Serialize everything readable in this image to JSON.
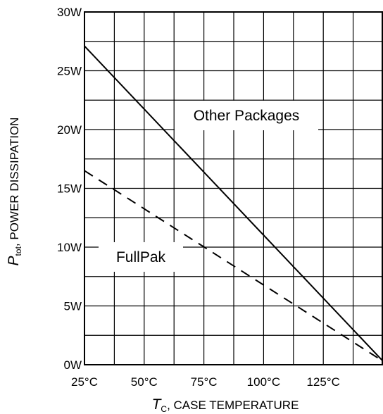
{
  "chart_data": {
    "type": "line",
    "xlabel": {
      "symbol": "T",
      "subscript": "C",
      "text": ", CASE TEMPERATURE"
    },
    "ylabel": {
      "symbol": "P",
      "subscript": "tot",
      "text": ",  POWER DISSIPATION"
    },
    "x_ticks": [
      "25°C",
      "50°C",
      "75°C",
      "100°C",
      "125°C"
    ],
    "x_tick_values": [
      25,
      50,
      75,
      100,
      125
    ],
    "y_ticks": [
      "0W",
      "5W",
      "10W",
      "15W",
      "20W",
      "25W",
      "30W"
    ],
    "y_tick_values": [
      0,
      5,
      10,
      15,
      20,
      25,
      30
    ],
    "xlim": [
      25,
      150
    ],
    "ylim": [
      0,
      30
    ],
    "grid": true,
    "grid_x_step": 12.5,
    "grid_y_step": 2.5,
    "series": [
      {
        "name": "Other Packages",
        "line_style": "solid",
        "x": [
          25,
          150
        ],
        "y": [
          27.1,
          0.3
        ]
      },
      {
        "name": "FullPak",
        "line_style": "dashed",
        "x": [
          25,
          150
        ],
        "y": [
          16.5,
          0.3
        ]
      }
    ],
    "annotations": [
      {
        "text": "Other Packages",
        "series": 0
      },
      {
        "text": "FullPak",
        "series": 1
      }
    ]
  }
}
